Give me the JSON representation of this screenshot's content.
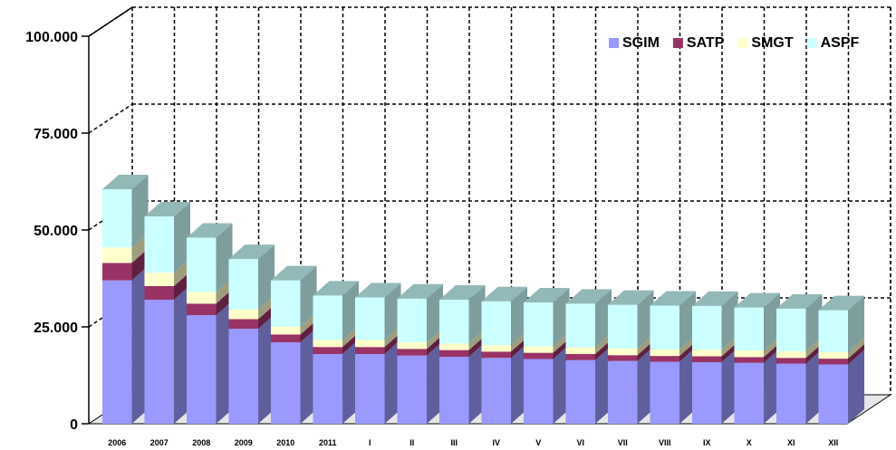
{
  "chart_data": {
    "type": "bar",
    "stacked": true,
    "three_d": true,
    "categories": [
      "2006",
      "2007",
      "2008",
      "2009",
      "2010",
      "2011",
      "I",
      "II",
      "III",
      "IV",
      "V",
      "VI",
      "VII",
      "VIII",
      "IX",
      "X",
      "XI",
      "XII"
    ],
    "series": [
      {
        "name": "SGIM",
        "color": "#9999ff",
        "values": [
          37000,
          32000,
          28000,
          24500,
          21000,
          18000,
          18000,
          17600,
          17300,
          17000,
          16700,
          16400,
          16200,
          16000,
          15900,
          15700,
          15500,
          15300
        ]
      },
      {
        "name": "SATP",
        "color": "#993366",
        "values": [
          4500,
          3500,
          3000,
          2500,
          2000,
          1800,
          1800,
          1700,
          1700,
          1600,
          1600,
          1600,
          1500,
          1500,
          1500,
          1500,
          1500,
          1500
        ]
      },
      {
        "name": "SMGT",
        "color": "#ffffcc",
        "values": [
          4000,
          3500,
          3000,
          2500,
          2000,
          1800,
          1800,
          1700,
          1700,
          1700,
          1700,
          1700,
          1700,
          1700,
          1700,
          1700,
          1700,
          1700
        ]
      },
      {
        "name": "ASPF",
        "color": "#ccffff",
        "values": [
          15000,
          14500,
          14000,
          13000,
          12000,
          11500,
          11000,
          11300,
          11300,
          11300,
          11300,
          11300,
          11300,
          11300,
          11300,
          11100,
          11000,
          10800
        ]
      }
    ],
    "y_ticks": [
      "0",
      "25.000",
      "50.000",
      "75.000",
      "100.000"
    ],
    "ylim": [
      0,
      100000
    ],
    "legend_position": "top-right",
    "grid": "dashed"
  }
}
